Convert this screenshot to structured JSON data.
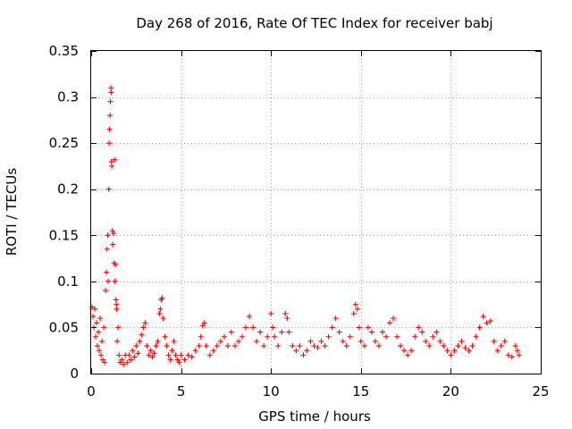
{
  "chart_data": {
    "type": "scatter",
    "title": "Day 268 of 2016, Rate Of TEC Index for receiver babj",
    "xlabel": "GPS time / hours",
    "ylabel": "ROTI / TECUs",
    "xlim": [
      0,
      25
    ],
    "ylim": [
      0,
      0.35
    ],
    "x_ticks": [
      0,
      5,
      10,
      15,
      20,
      25
    ],
    "x_tick_labels": [
      "0",
      "5",
      "10",
      "15",
      "20",
      "25"
    ],
    "y_ticks": [
      0,
      0.05,
      0.1,
      0.15,
      0.2,
      0.25,
      0.3,
      0.35
    ],
    "y_tick_labels": [
      "0",
      "0.05",
      "0.1",
      "0.15",
      "0.2",
      "0.25",
      "0.3",
      "0.35"
    ],
    "grid": true,
    "marker": "+",
    "color": "#ff0000",
    "series": [
      {
        "name": "ROTI",
        "points": [
          [
            0.05,
            0.072
          ],
          [
            0.1,
            0.062
          ],
          [
            0.15,
            0.05
          ],
          [
            0.2,
            0.07
          ],
          [
            0.25,
            0.04
          ],
          [
            0.3,
            0.055
          ],
          [
            0.35,
            0.03
          ],
          [
            0.4,
            0.045
          ],
          [
            0.45,
            0.025
          ],
          [
            0.5,
            0.06
          ],
          [
            0.55,
            0.02
          ],
          [
            0.6,
            0.035
          ],
          [
            0.65,
            0.015
          ],
          [
            0.7,
            0.05
          ],
          [
            0.75,
            0.012
          ],
          [
            0.8,
            0.09
          ],
          [
            0.85,
            0.11
          ],
          [
            0.88,
            0.135
          ],
          [
            0.92,
            0.15
          ],
          [
            0.95,
            0.1
          ],
          [
            0.98,
            0.2
          ],
          [
            1.0,
            0.25
          ],
          [
            1.02,
            0.265
          ],
          [
            1.05,
            0.28
          ],
          [
            1.07,
            0.295
          ],
          [
            1.09,
            0.31
          ],
          [
            1.11,
            0.305
          ],
          [
            1.13,
            0.23
          ],
          [
            1.15,
            0.225
          ],
          [
            1.18,
            0.155
          ],
          [
            1.2,
            0.14
          ],
          [
            1.25,
            0.152
          ],
          [
            1.28,
            0.12
          ],
          [
            1.3,
            0.232
          ],
          [
            1.32,
            0.1
          ],
          [
            1.35,
            0.118
          ],
          [
            1.38,
            0.08
          ],
          [
            1.4,
            0.075
          ],
          [
            1.42,
            0.07
          ],
          [
            1.45,
            0.035
          ],
          [
            1.5,
            0.05
          ],
          [
            1.55,
            0.02
          ],
          [
            1.6,
            0.012
          ],
          [
            1.7,
            0.015
          ],
          [
            1.8,
            0.01
          ],
          [
            1.9,
            0.02
          ],
          [
            2.0,
            0.012
          ],
          [
            2.1,
            0.02
          ],
          [
            2.2,
            0.015
          ],
          [
            2.3,
            0.025
          ],
          [
            2.4,
            0.018
          ],
          [
            2.5,
            0.03
          ],
          [
            2.6,
            0.022
          ],
          [
            2.7,
            0.035
          ],
          [
            2.8,
            0.042
          ],
          [
            2.9,
            0.05
          ],
          [
            3.0,
            0.055
          ],
          [
            3.1,
            0.03
          ],
          [
            3.2,
            0.02
          ],
          [
            3.3,
            0.025
          ],
          [
            3.4,
            0.018
          ],
          [
            3.5,
            0.022
          ],
          [
            3.6,
            0.03
          ],
          [
            3.7,
            0.035
          ],
          [
            3.8,
            0.065
          ],
          [
            3.85,
            0.07
          ],
          [
            3.9,
            0.08
          ],
          [
            3.95,
            0.082
          ],
          [
            4.0,
            0.06
          ],
          [
            4.1,
            0.04
          ],
          [
            4.2,
            0.03
          ],
          [
            4.3,
            0.02
          ],
          [
            4.4,
            0.015
          ],
          [
            4.5,
            0.025
          ],
          [
            4.6,
            0.035
          ],
          [
            4.7,
            0.02
          ],
          [
            4.8,
            0.015
          ],
          [
            4.9,
            0.012
          ],
          [
            5.0,
            0.02
          ],
          [
            5.2,
            0.015
          ],
          [
            5.4,
            0.02
          ],
          [
            5.6,
            0.018
          ],
          [
            5.8,
            0.025
          ],
          [
            6.0,
            0.03
          ],
          [
            6.1,
            0.04
          ],
          [
            6.2,
            0.052
          ],
          [
            6.3,
            0.055
          ],
          [
            6.4,
            0.03
          ],
          [
            6.6,
            0.02
          ],
          [
            6.8,
            0.025
          ],
          [
            7.0,
            0.03
          ],
          [
            7.2,
            0.035
          ],
          [
            7.4,
            0.04
          ],
          [
            7.6,
            0.03
          ],
          [
            7.8,
            0.045
          ],
          [
            8.0,
            0.03
          ],
          [
            8.2,
            0.035
          ],
          [
            8.4,
            0.04
          ],
          [
            8.6,
            0.05
          ],
          [
            8.8,
            0.062
          ],
          [
            9.0,
            0.05
          ],
          [
            9.2,
            0.035
          ],
          [
            9.4,
            0.045
          ],
          [
            9.6,
            0.03
          ],
          [
            9.8,
            0.04
          ],
          [
            10.0,
            0.065
          ],
          [
            10.1,
            0.05
          ],
          [
            10.2,
            0.04
          ],
          [
            10.4,
            0.03
          ],
          [
            10.6,
            0.045
          ],
          [
            10.8,
            0.065
          ],
          [
            10.9,
            0.06
          ],
          [
            11.0,
            0.045
          ],
          [
            11.2,
            0.03
          ],
          [
            11.4,
            0.025
          ],
          [
            11.6,
            0.03
          ],
          [
            11.8,
            0.02
          ],
          [
            12.0,
            0.025
          ],
          [
            12.2,
            0.035
          ],
          [
            12.4,
            0.03
          ],
          [
            12.6,
            0.028
          ],
          [
            12.8,
            0.035
          ],
          [
            13.0,
            0.03
          ],
          [
            13.2,
            0.04
          ],
          [
            13.4,
            0.05
          ],
          [
            13.6,
            0.06
          ],
          [
            13.8,
            0.045
          ],
          [
            14.0,
            0.035
          ],
          [
            14.2,
            0.03
          ],
          [
            14.4,
            0.04
          ],
          [
            14.6,
            0.065
          ],
          [
            14.7,
            0.075
          ],
          [
            14.8,
            0.07
          ],
          [
            14.9,
            0.05
          ],
          [
            15.0,
            0.035
          ],
          [
            15.2,
            0.03
          ],
          [
            15.4,
            0.05
          ],
          [
            15.6,
            0.045
          ],
          [
            15.8,
            0.035
          ],
          [
            16.0,
            0.03
          ],
          [
            16.2,
            0.045
          ],
          [
            16.4,
            0.04
          ],
          [
            16.6,
            0.055
          ],
          [
            16.8,
            0.06
          ],
          [
            17.0,
            0.04
          ],
          [
            17.2,
            0.03
          ],
          [
            17.4,
            0.025
          ],
          [
            17.6,
            0.02
          ],
          [
            17.8,
            0.025
          ],
          [
            18.0,
            0.04
          ],
          [
            18.2,
            0.05
          ],
          [
            18.4,
            0.045
          ],
          [
            18.6,
            0.035
          ],
          [
            18.8,
            0.03
          ],
          [
            19.0,
            0.04
          ],
          [
            19.2,
            0.045
          ],
          [
            19.4,
            0.035
          ],
          [
            19.6,
            0.03
          ],
          [
            19.8,
            0.025
          ],
          [
            20.0,
            0.02
          ],
          [
            20.2,
            0.025
          ],
          [
            20.4,
            0.03
          ],
          [
            20.6,
            0.035
          ],
          [
            20.8,
            0.028
          ],
          [
            21.0,
            0.025
          ],
          [
            21.2,
            0.03
          ],
          [
            21.4,
            0.04
          ],
          [
            21.6,
            0.05
          ],
          [
            21.8,
            0.062
          ],
          [
            22.0,
            0.055
          ],
          [
            22.2,
            0.057
          ],
          [
            22.4,
            0.035
          ],
          [
            22.6,
            0.025
          ],
          [
            22.8,
            0.03
          ],
          [
            23.0,
            0.035
          ],
          [
            23.2,
            0.02
          ],
          [
            23.4,
            0.018
          ],
          [
            23.6,
            0.03
          ],
          [
            23.7,
            0.025
          ],
          [
            23.8,
            0.02
          ]
        ]
      }
    ]
  }
}
